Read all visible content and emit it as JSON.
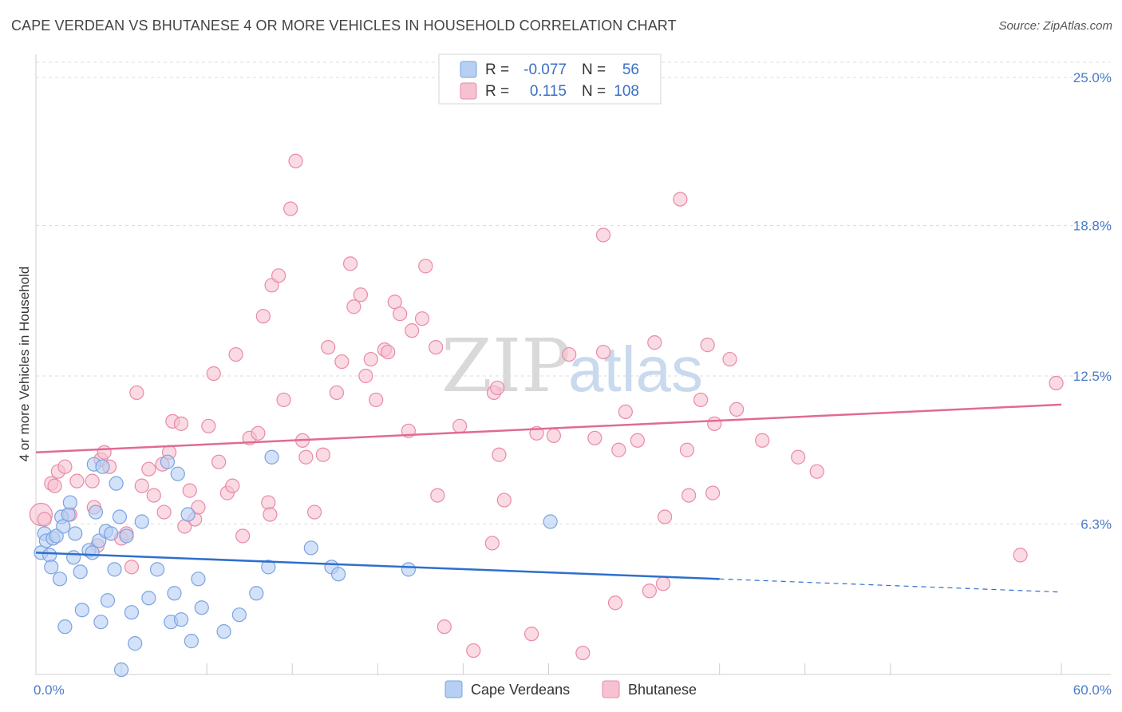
{
  "title": "CAPE VERDEAN VS BHUTANESE 4 OR MORE VEHICLES IN HOUSEHOLD CORRELATION CHART",
  "source": "Source: ZipAtlas.com",
  "watermark": {
    "zip": "ZIP",
    "atlas": "atlas"
  },
  "colors": {
    "blue_fill": "#b6cff3",
    "blue_stroke": "#7ba3e0",
    "blue_line": "#2f6fcc",
    "pink_fill": "#f6c1d1",
    "pink_stroke": "#e98aa8",
    "pink_line": "#e06b93",
    "tick": "#4a7bc8",
    "grid": "#dddddd"
  },
  "legend": {
    "rows": [
      {
        "r_label": "R =",
        "r_value": "-0.077",
        "n_label": "N =",
        "n_value": "56"
      },
      {
        "r_label": "R =",
        "r_value": "0.115",
        "n_label": "N =",
        "n_value": "108"
      }
    ]
  },
  "bottom_legend": [
    "Cape Verdeans",
    "Bhutanese"
  ],
  "chart_data": {
    "type": "scatter",
    "title": "CAPE VERDEAN VS BHUTANESE 4 OR MORE VEHICLES IN HOUSEHOLD CORRELATION CHART",
    "xlabel": "",
    "ylabel": "4 or more Vehicles in Household",
    "xlim": [
      0,
      60
    ],
    "ylim": [
      0,
      25.0
    ],
    "x_tick_labels": [
      "0.0%",
      "60.0%"
    ],
    "y_ticks": [
      6.3,
      12.5,
      18.8,
      25.0
    ],
    "y_tick_labels": [
      "6.3%",
      "12.5%",
      "18.8%",
      "25.0%"
    ],
    "grid": true,
    "legend_position": "top-center",
    "series": [
      {
        "name": "Cape Verdeans",
        "r": -0.077,
        "n": 56,
        "trend": {
          "x0": 0,
          "y0": 5.1,
          "x1": 40,
          "y1": 4.0,
          "dash_to_x": 60,
          "dash_to_y": 3.45
        },
        "points": [
          [
            0.3,
            5.1
          ],
          [
            0.5,
            5.9
          ],
          [
            0.6,
            5.6
          ],
          [
            0.8,
            5.0
          ],
          [
            0.9,
            4.5
          ],
          [
            1.0,
            5.7
          ],
          [
            1.2,
            5.8
          ],
          [
            1.4,
            4.0
          ],
          [
            1.5,
            6.6
          ],
          [
            1.6,
            6.2
          ],
          [
            1.7,
            2.0
          ],
          [
            1.9,
            6.7
          ],
          [
            2.0,
            7.2
          ],
          [
            2.2,
            4.9
          ],
          [
            2.3,
            5.9
          ],
          [
            2.6,
            4.3
          ],
          [
            2.7,
            2.7
          ],
          [
            3.1,
            5.2
          ],
          [
            3.3,
            5.1
          ],
          [
            3.4,
            8.8
          ],
          [
            3.5,
            6.8
          ],
          [
            3.7,
            5.6
          ],
          [
            3.8,
            2.2
          ],
          [
            3.9,
            8.7
          ],
          [
            4.1,
            6.0
          ],
          [
            4.2,
            3.1
          ],
          [
            4.4,
            5.9
          ],
          [
            4.6,
            4.4
          ],
          [
            4.7,
            8.0
          ],
          [
            4.9,
            6.6
          ],
          [
            5.0,
            0.2
          ],
          [
            5.3,
            5.8
          ],
          [
            5.6,
            2.6
          ],
          [
            5.8,
            1.3
          ],
          [
            6.2,
            6.4
          ],
          [
            6.6,
            3.2
          ],
          [
            7.1,
            4.4
          ],
          [
            7.7,
            8.9
          ],
          [
            7.9,
            2.2
          ],
          [
            8.1,
            3.4
          ],
          [
            8.3,
            8.4
          ],
          [
            8.5,
            2.3
          ],
          [
            8.9,
            6.7
          ],
          [
            9.1,
            1.4
          ],
          [
            9.5,
            4.0
          ],
          [
            9.7,
            2.8
          ],
          [
            11.0,
            1.8
          ],
          [
            11.9,
            2.5
          ],
          [
            12.9,
            3.4
          ],
          [
            13.6,
            4.5
          ],
          [
            13.8,
            9.1
          ],
          [
            16.1,
            5.3
          ],
          [
            17.3,
            4.5
          ],
          [
            17.7,
            4.2
          ],
          [
            21.8,
            4.4
          ],
          [
            30.1,
            6.4
          ]
        ]
      },
      {
        "name": "Bhutanese",
        "r": 0.115,
        "n": 108,
        "trend": {
          "x0": 0,
          "y0": 9.3,
          "x1": 60,
          "y1": 11.3
        },
        "points": [
          [
            0.3,
            6.7
          ],
          [
            0.5,
            6.5
          ],
          [
            0.9,
            8.0
          ],
          [
            1.1,
            7.9
          ],
          [
            1.3,
            8.5
          ],
          [
            1.7,
            8.7
          ],
          [
            2.0,
            6.7
          ],
          [
            2.4,
            8.1
          ],
          [
            3.3,
            8.1
          ],
          [
            3.4,
            7.0
          ],
          [
            3.6,
            5.4
          ],
          [
            3.8,
            9.0
          ],
          [
            4.0,
            9.3
          ],
          [
            4.3,
            8.7
          ],
          [
            5.0,
            5.7
          ],
          [
            5.3,
            5.9
          ],
          [
            5.6,
            4.5
          ],
          [
            5.9,
            11.8
          ],
          [
            6.2,
            7.9
          ],
          [
            6.6,
            8.6
          ],
          [
            6.9,
            7.5
          ],
          [
            7.4,
            8.8
          ],
          [
            7.5,
            6.8
          ],
          [
            7.8,
            9.3
          ],
          [
            8.0,
            10.6
          ],
          [
            8.5,
            10.5
          ],
          [
            8.7,
            6.2
          ],
          [
            9.0,
            7.7
          ],
          [
            9.3,
            6.5
          ],
          [
            9.5,
            7.0
          ],
          [
            10.1,
            10.4
          ],
          [
            10.4,
            12.6
          ],
          [
            10.7,
            8.9
          ],
          [
            11.2,
            7.6
          ],
          [
            11.5,
            7.9
          ],
          [
            11.7,
            13.4
          ],
          [
            12.1,
            5.8
          ],
          [
            12.5,
            9.9
          ],
          [
            13.0,
            10.1
          ],
          [
            13.3,
            15.0
          ],
          [
            13.6,
            7.2
          ],
          [
            13.7,
            6.7
          ],
          [
            13.8,
            16.3
          ],
          [
            14.2,
            16.7
          ],
          [
            14.5,
            11.5
          ],
          [
            14.9,
            19.5
          ],
          [
            15.2,
            21.5
          ],
          [
            15.6,
            9.8
          ],
          [
            15.8,
            9.1
          ],
          [
            16.3,
            6.8
          ],
          [
            16.8,
            9.2
          ],
          [
            17.1,
            13.7
          ],
          [
            17.6,
            11.8
          ],
          [
            17.9,
            13.1
          ],
          [
            18.4,
            17.2
          ],
          [
            18.6,
            15.4
          ],
          [
            19.0,
            15.9
          ],
          [
            19.3,
            12.5
          ],
          [
            19.6,
            13.2
          ],
          [
            19.9,
            11.5
          ],
          [
            20.4,
            13.6
          ],
          [
            20.6,
            13.5
          ],
          [
            21.0,
            15.6
          ],
          [
            21.3,
            15.1
          ],
          [
            21.8,
            10.2
          ],
          [
            22.0,
            14.4
          ],
          [
            22.8,
            17.1
          ],
          [
            23.4,
            13.7
          ],
          [
            23.5,
            7.5
          ],
          [
            23.9,
            2.0
          ],
          [
            24.8,
            10.4
          ],
          [
            25.6,
            1.0
          ],
          [
            26.7,
            5.5
          ],
          [
            26.8,
            11.8
          ],
          [
            27.1,
            9.2
          ],
          [
            27.4,
            7.3
          ],
          [
            29.0,
            1.7
          ],
          [
            29.3,
            10.1
          ],
          [
            30.3,
            10.0
          ],
          [
            31.2,
            13.4
          ],
          [
            32.0,
            0.9
          ],
          [
            32.7,
            9.9
          ],
          [
            33.2,
            13.5
          ],
          [
            33.9,
            3.0
          ],
          [
            34.1,
            9.4
          ],
          [
            34.5,
            11.0
          ],
          [
            35.2,
            9.8
          ],
          [
            35.9,
            3.5
          ],
          [
            36.2,
            13.9
          ],
          [
            36.7,
            3.8
          ],
          [
            36.8,
            6.6
          ],
          [
            37.7,
            19.9
          ],
          [
            38.1,
            9.4
          ],
          [
            38.2,
            7.5
          ],
          [
            38.9,
            11.5
          ],
          [
            39.3,
            13.8
          ],
          [
            39.6,
            7.6
          ],
          [
            39.7,
            10.5
          ],
          [
            40.6,
            13.2
          ],
          [
            41.0,
            11.1
          ],
          [
            42.5,
            9.8
          ],
          [
            44.6,
            9.1
          ],
          [
            45.7,
            8.5
          ],
          [
            57.6,
            5.0
          ],
          [
            59.7,
            12.2
          ],
          [
            33.2,
            18.4
          ],
          [
            22.6,
            14.9
          ],
          [
            27.0,
            12.0
          ]
        ]
      }
    ]
  }
}
